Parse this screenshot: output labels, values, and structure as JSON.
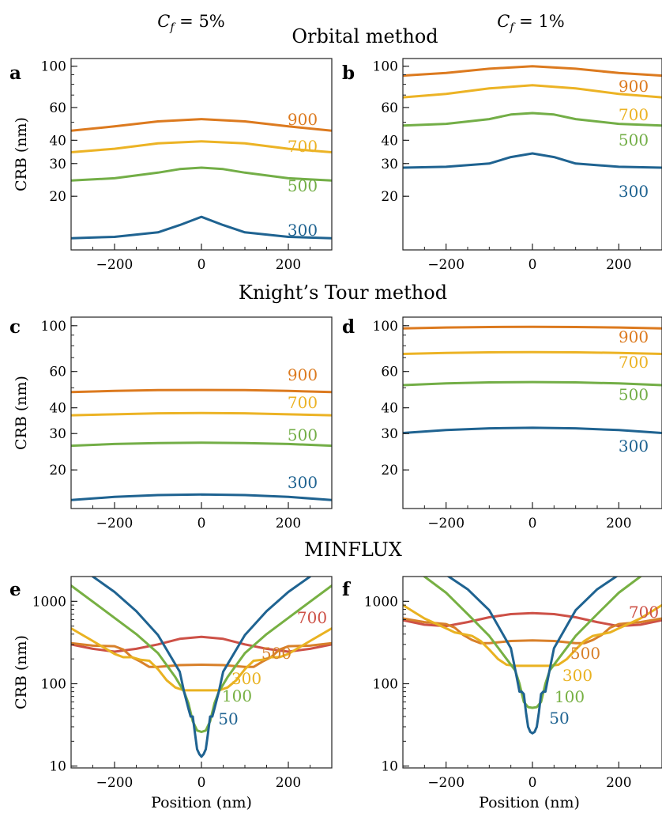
{
  "header": {
    "col_left": {
      "sym": "C",
      "sub": "f",
      "val": " = 5%"
    },
    "col_right": {
      "sym": "C",
      "sub": "f",
      "val": " = 1%"
    }
  },
  "sections": [
    "Orbital method",
    "Knight’s Tour method",
    "MINFLUX"
  ],
  "colors": {
    "50": "#1f6391",
    "100": "#77b043",
    "300": "#e9b221",
    "500": "#d8802a",
    "700": "#cd5147",
    "900": "#dc7a1f",
    "700_top": "#ecb325",
    "500_top": "#73ae47",
    "300_top": "#1f6391"
  },
  "chart_data": [
    {
      "id": "a",
      "type": "line",
      "scale": "log",
      "xlim": [
        -300,
        300
      ],
      "ylim": [
        10.3,
        110
      ],
      "ylabel": "CRB (nm)",
      "xlabel": "",
      "xticks": [
        -200,
        0,
        200
      ],
      "yticks": [
        20,
        30,
        40,
        60,
        100
      ],
      "series": [
        {
          "name": "900",
          "color": "#dc7a1f",
          "x": [
            -300,
            -200,
            -100,
            0,
            100,
            200,
            300
          ],
          "y": [
            45.0,
            47.5,
            50.5,
            52.0,
            50.5,
            47.5,
            45.0
          ]
        },
        {
          "name": "700",
          "color": "#ecb325",
          "x": [
            -300,
            -200,
            -100,
            0,
            100,
            200,
            300
          ],
          "y": [
            34.5,
            36.0,
            38.5,
            39.5,
            38.5,
            36.0,
            34.5
          ]
        },
        {
          "name": "500",
          "color": "#73ae47",
          "x": [
            -300,
            -200,
            -100,
            -50,
            0,
            50,
            100,
            200,
            300
          ],
          "y": [
            24.3,
            25.0,
            26.8,
            28.0,
            28.5,
            28.0,
            26.8,
            25.0,
            24.3
          ]
        },
        {
          "name": "300",
          "color": "#1f6391",
          "x": [
            -300,
            -200,
            -100,
            -50,
            0,
            50,
            100,
            200,
            300
          ],
          "y": [
            11.9,
            12.1,
            12.8,
            14.0,
            15.5,
            14.0,
            12.8,
            12.1,
            11.9
          ]
        }
      ]
    },
    {
      "id": "b",
      "type": "line",
      "scale": "log",
      "xlim": [
        -300,
        300
      ],
      "ylim": [
        10.3,
        110
      ],
      "ylabel": "",
      "xlabel": "",
      "xticks": [
        -200,
        0,
        200
      ],
      "yticks": [
        20,
        30,
        40,
        60,
        100
      ],
      "series": [
        {
          "name": "900",
          "color": "#dc7a1f",
          "x": [
            -300,
            -200,
            -100,
            0,
            100,
            200,
            300
          ],
          "y": [
            89,
            92,
            97,
            100,
            97,
            92,
            89
          ]
        },
        {
          "name": "700",
          "color": "#ecb325",
          "x": [
            -300,
            -200,
            -100,
            0,
            100,
            200,
            300
          ],
          "y": [
            68,
            71,
            76,
            79,
            76,
            71,
            68
          ]
        },
        {
          "name": "500",
          "color": "#73ae47",
          "x": [
            -300,
            -200,
            -100,
            -50,
            0,
            50,
            100,
            200,
            300
          ],
          "y": [
            48,
            49,
            52,
            55,
            56,
            55,
            52,
            49,
            48
          ]
        },
        {
          "name": "300",
          "color": "#1f6391",
          "x": [
            -300,
            -200,
            -100,
            -50,
            0,
            50,
            100,
            200,
            300
          ],
          "y": [
            28.5,
            28.8,
            30.0,
            32.5,
            34.0,
            32.5,
            30.0,
            28.8,
            28.5
          ]
        }
      ]
    },
    {
      "id": "c",
      "type": "line",
      "scale": "log",
      "xlim": [
        -300,
        300
      ],
      "ylim": [
        13,
        110
      ],
      "ylabel": "CRB (nm)",
      "xlabel": "",
      "xticks": [
        -200,
        0,
        200
      ],
      "yticks": [
        20,
        30,
        40,
        60,
        100
      ],
      "series": [
        {
          "name": "900",
          "color": "#dc7a1f",
          "x": [
            -300,
            -200,
            -100,
            0,
            100,
            200,
            300
          ],
          "y": [
            47.7,
            48.3,
            48.7,
            48.8,
            48.7,
            48.3,
            47.7
          ]
        },
        {
          "name": "700",
          "color": "#ecb325",
          "x": [
            -300,
            -200,
            -100,
            0,
            100,
            200,
            300
          ],
          "y": [
            36.8,
            37.2,
            37.6,
            37.7,
            37.6,
            37.2,
            36.8
          ]
        },
        {
          "name": "500",
          "color": "#73ae47",
          "x": [
            -300,
            -200,
            -100,
            0,
            100,
            200,
            300
          ],
          "y": [
            26.2,
            26.7,
            27.0,
            27.1,
            27.0,
            26.7,
            26.2
          ]
        },
        {
          "name": "300",
          "color": "#1f6391",
          "x": [
            -300,
            -200,
            -100,
            0,
            100,
            200,
            300
          ],
          "y": [
            14.3,
            14.8,
            15.1,
            15.2,
            15.1,
            14.8,
            14.3
          ]
        }
      ]
    },
    {
      "id": "d",
      "type": "line",
      "scale": "log",
      "xlim": [
        -300,
        300
      ],
      "ylim": [
        13,
        110
      ],
      "ylabel": "",
      "xlabel": "",
      "xticks": [
        -200,
        0,
        200
      ],
      "yticks": [
        20,
        30,
        40,
        60,
        100
      ],
      "series": [
        {
          "name": "900",
          "color": "#dc7a1f",
          "x": [
            -300,
            -200,
            -100,
            0,
            100,
            200,
            300
          ],
          "y": [
            97.0,
            98.0,
            98.5,
            98.8,
            98.5,
            98.0,
            97.0
          ]
        },
        {
          "name": "700",
          "color": "#ecb325",
          "x": [
            -300,
            -200,
            -100,
            0,
            100,
            200,
            300
          ],
          "y": [
            73.0,
            73.8,
            74.3,
            74.5,
            74.3,
            73.8,
            73.0
          ]
        },
        {
          "name": "500",
          "color": "#73ae47",
          "x": [
            -300,
            -200,
            -100,
            0,
            100,
            200,
            300
          ],
          "y": [
            51.5,
            52.5,
            53.1,
            53.3,
            53.1,
            52.5,
            51.5
          ]
        },
        {
          "name": "300",
          "color": "#1f6391",
          "x": [
            -300,
            -200,
            -100,
            0,
            100,
            200,
            300
          ],
          "y": [
            30.2,
            31.2,
            31.8,
            32.0,
            31.8,
            31.2,
            30.2
          ]
        }
      ]
    },
    {
      "id": "e",
      "type": "line",
      "scale": "log",
      "xlim": [
        -300,
        300
      ],
      "ylim": [
        9.5,
        2000
      ],
      "ylabel": "CRB (nm)",
      "xlabel": "Position (nm)",
      "xticks": [
        -200,
        0,
        200
      ],
      "yticks": [
        10,
        100,
        1000
      ],
      "series": [
        {
          "name": "700",
          "color": "#cd5147",
          "x": [
            -300,
            -250,
            -200,
            -150,
            -100,
            -50,
            0,
            50,
            100,
            150,
            200,
            250,
            300
          ],
          "y": [
            300,
            265,
            245,
            265,
            300,
            350,
            370,
            350,
            300,
            265,
            245,
            265,
            300
          ]
        },
        {
          "name": "500",
          "color": "#d8802a",
          "x": [
            -300,
            -250,
            -200,
            -180,
            -160,
            -140,
            -120,
            -100,
            -50,
            0,
            50,
            100,
            120,
            140,
            160,
            180,
            200,
            250,
            300
          ],
          "y": [
            310,
            290,
            285,
            260,
            210,
            185,
            160,
            160,
            168,
            170,
            168,
            160,
            160,
            185,
            210,
            260,
            285,
            290,
            310
          ]
        },
        {
          "name": "300",
          "color": "#e9b221",
          "x": [
            -300,
            -250,
            -200,
            -180,
            -160,
            -140,
            -120,
            -100,
            -80,
            -60,
            -40,
            0,
            40,
            60,
            80,
            100,
            120,
            140,
            160,
            180,
            200,
            250,
            300
          ],
          "y": [
            470,
            330,
            230,
            210,
            210,
            195,
            190,
            150,
            110,
            90,
            83,
            83,
            83,
            90,
            110,
            150,
            190,
            195,
            210,
            210,
            230,
            330,
            470
          ]
        },
        {
          "name": "100",
          "color": "#77b043",
          "x": [
            -300,
            -250,
            -200,
            -150,
            -100,
            -60,
            -40,
            -30,
            -20,
            -10,
            0,
            10,
            20,
            30,
            40,
            60,
            100,
            150,
            200,
            250,
            300
          ],
          "y": [
            1550,
            990,
            630,
            400,
            235,
            120,
            80,
            58,
            35,
            27,
            26,
            27,
            35,
            58,
            80,
            120,
            235,
            400,
            630,
            990,
            1550
          ]
        },
        {
          "name": "50",
          "color": "#1f6391",
          "x": [
            -250,
            -200,
            -150,
            -100,
            -50,
            -40,
            -30,
            -25,
            -20,
            -15,
            -10,
            -5,
            0,
            5,
            10,
            15,
            20,
            25,
            30,
            40,
            50,
            100,
            150,
            200,
            250
          ],
          "y": [
            2000,
            1300,
            760,
            390,
            140,
            80,
            50,
            40,
            40,
            25,
            16,
            14,
            13,
            14,
            16,
            25,
            40,
            40,
            50,
            80,
            140,
            390,
            760,
            1300,
            2000
          ]
        }
      ]
    },
    {
      "id": "f",
      "type": "line",
      "scale": "log",
      "xlim": [
        -300,
        300
      ],
      "ylim": [
        9.5,
        2000
      ],
      "ylabel": "",
      "xlabel": "Position (nm)",
      "xticks": [
        -200,
        0,
        200
      ],
      "yticks": [
        10,
        100,
        1000
      ],
      "series": [
        {
          "name": "700",
          "color": "#cd5147",
          "x": [
            -300,
            -250,
            -200,
            -150,
            -100,
            -50,
            0,
            50,
            100,
            150,
            200,
            250,
            300
          ],
          "y": [
            590,
            520,
            500,
            560,
            640,
            700,
            720,
            700,
            640,
            560,
            500,
            520,
            590
          ]
        },
        {
          "name": "500",
          "color": "#d8802a",
          "x": [
            -300,
            -250,
            -200,
            -180,
            -160,
            -140,
            -120,
            -100,
            -50,
            0,
            50,
            100,
            120,
            140,
            160,
            180,
            200,
            250,
            300
          ],
          "y": [
            620,
            560,
            530,
            480,
            390,
            340,
            310,
            310,
            330,
            335,
            330,
            310,
            310,
            340,
            390,
            480,
            530,
            560,
            620
          ]
        },
        {
          "name": "300",
          "color": "#e9b221",
          "x": [
            -300,
            -250,
            -200,
            -180,
            -160,
            -140,
            -120,
            -100,
            -80,
            -60,
            -40,
            0,
            40,
            60,
            80,
            100,
            120,
            140,
            160,
            180,
            200,
            250,
            300
          ],
          "y": [
            900,
            620,
            470,
            420,
            400,
            380,
            330,
            260,
            200,
            170,
            165,
            165,
            165,
            170,
            200,
            260,
            330,
            380,
            400,
            420,
            470,
            620,
            900
          ]
        },
        {
          "name": "100",
          "color": "#77b043",
          "x": [
            -250,
            -200,
            -150,
            -100,
            -60,
            -40,
            -30,
            -20,
            -10,
            0,
            10,
            20,
            30,
            40,
            60,
            100,
            150,
            200,
            250
          ],
          "y": [
            2000,
            1270,
            700,
            380,
            200,
            145,
            100,
            60,
            52,
            51,
            52,
            60,
            100,
            145,
            200,
            380,
            700,
            1270,
            2000
          ]
        },
        {
          "name": "50",
          "color": "#1f6391",
          "x": [
            -200,
            -150,
            -100,
            -50,
            -40,
            -30,
            -25,
            -20,
            -15,
            -10,
            -5,
            0,
            5,
            10,
            15,
            20,
            25,
            30,
            40,
            50,
            100,
            150,
            200
          ],
          "y": [
            2100,
            1400,
            780,
            270,
            150,
            80,
            80,
            75,
            45,
            30,
            26,
            25,
            26,
            30,
            45,
            75,
            80,
            80,
            150,
            270,
            780,
            1400,
            2100
          ]
        }
      ]
    }
  ]
}
